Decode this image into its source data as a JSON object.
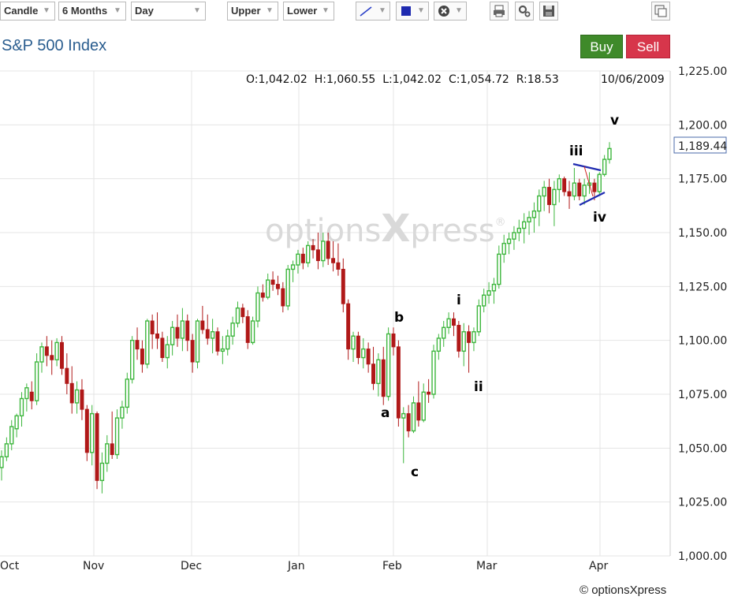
{
  "toolbar": {
    "chart_type": "Candle",
    "period": "6 Months",
    "interval": "Day",
    "upper": "Upper",
    "lower": "Lower",
    "line_color": "#2a40c8",
    "fill_color": "#1f2bb0",
    "icons": [
      "trendline-icon",
      "color-swatch-icon",
      "remove-icon",
      "print-icon",
      "settings-icon",
      "save-icon",
      "popout-icon"
    ]
  },
  "header": {
    "title": "S&P 500 Index",
    "buy_label": "Buy",
    "sell_label": "Sell",
    "ohlc_text": "O:1,042.02  H:1,060.55  L:1,042.02  C:1,054.72  R:18.53",
    "date": "10/06/2009"
  },
  "colors": {
    "up": "#3cb63c",
    "down": "#b01818",
    "grid": "#e4e4e4",
    "trend": "#1f2bb0",
    "trend_red": "#d02020"
  },
  "watermark": {
    "prefix": "options",
    "x": "X",
    "suffix": "press",
    "mark": "®"
  },
  "footer": {
    "copyright": "© optionsXpress"
  },
  "chart_data": {
    "type": "candlestick",
    "title": "S&P 500 Index",
    "ylim": [
      1000,
      1225
    ],
    "y_ticks": [
      "1,000.00",
      "1,025.00",
      "1,050.00",
      "1,075.00",
      "1,100.00",
      "1,125.00",
      "1,150.00",
      "1,175.00",
      "1,200.00",
      "1,225.00"
    ],
    "x_labels": [
      "Oct",
      "Nov",
      "Dec",
      "Jan",
      "Feb",
      "Mar",
      "Apr"
    ],
    "last_price": "1,189.44",
    "wave_labels": [
      "a",
      "b",
      "c",
      "i",
      "ii",
      "iii",
      "iv",
      "v"
    ],
    "candles": [
      [
        1041,
        1049,
        1035,
        1046
      ],
      [
        1046,
        1055,
        1044,
        1052
      ],
      [
        1052,
        1063,
        1049,
        1060
      ],
      [
        1059,
        1066,
        1055,
        1065
      ],
      [
        1065,
        1076,
        1060,
        1073
      ],
      [
        1073,
        1080,
        1067,
        1078
      ],
      [
        1076,
        1081,
        1068,
        1072
      ],
      [
        1072,
        1094,
        1070,
        1090
      ],
      [
        1090,
        1099,
        1085,
        1097
      ],
      [
        1097,
        1102,
        1088,
        1093
      ],
      [
        1093,
        1100,
        1084,
        1091
      ],
      [
        1091,
        1101,
        1088,
        1099
      ],
      [
        1099,
        1102,
        1084,
        1087
      ],
      [
        1087,
        1094,
        1075,
        1080
      ],
      [
        1080,
        1088,
        1066,
        1071
      ],
      [
        1071,
        1081,
        1066,
        1077
      ],
      [
        1077,
        1082,
        1063,
        1068
      ],
      [
        1068,
        1070,
        1044,
        1048
      ],
      [
        1048,
        1070,
        1042,
        1066
      ],
      [
        1066,
        1067,
        1031,
        1035
      ],
      [
        1035,
        1048,
        1029,
        1043
      ],
      [
        1043,
        1056,
        1039,
        1052
      ],
      [
        1052,
        1067,
        1045,
        1047
      ],
      [
        1047,
        1068,
        1045,
        1064
      ],
      [
        1064,
        1072,
        1059,
        1069
      ],
      [
        1069,
        1085,
        1066,
        1082
      ],
      [
        1082,
        1102,
        1080,
        1100
      ],
      [
        1100,
        1106,
        1091,
        1096
      ],
      [
        1096,
        1100,
        1085,
        1089
      ],
      [
        1089,
        1110,
        1087,
        1109
      ],
      [
        1109,
        1112,
        1096,
        1103
      ],
      [
        1103,
        1113,
        1096,
        1101
      ],
      [
        1101,
        1104,
        1090,
        1092
      ],
      [
        1092,
        1102,
        1087,
        1098
      ],
      [
        1098,
        1109,
        1093,
        1106
      ],
      [
        1106,
        1112,
        1097,
        1101
      ],
      [
        1101,
        1115,
        1095,
        1109
      ],
      [
        1109,
        1112,
        1095,
        1100
      ],
      [
        1100,
        1103,
        1085,
        1090
      ],
      [
        1090,
        1110,
        1087,
        1109
      ],
      [
        1109,
        1116,
        1103,
        1105
      ],
      [
        1105,
        1112,
        1098,
        1101
      ],
      [
        1101,
        1110,
        1094,
        1104
      ],
      [
        1104,
        1106,
        1093,
        1095
      ],
      [
        1095,
        1102,
        1089,
        1096
      ],
      [
        1096,
        1105,
        1093,
        1102
      ],
      [
        1102,
        1111,
        1098,
        1108
      ],
      [
        1108,
        1118,
        1106,
        1115
      ],
      [
        1115,
        1117,
        1108,
        1111
      ],
      [
        1111,
        1114,
        1096,
        1099
      ],
      [
        1099,
        1111,
        1098,
        1109
      ],
      [
        1109,
        1125,
        1106,
        1122
      ],
      [
        1122,
        1126,
        1118,
        1120
      ],
      [
        1120,
        1131,
        1119,
        1128
      ],
      [
        1128,
        1132,
        1123,
        1126
      ],
      [
        1126,
        1130,
        1121,
        1124
      ],
      [
        1124,
        1127,
        1113,
        1116
      ],
      [
        1116,
        1135,
        1114,
        1133
      ],
      [
        1133,
        1137,
        1127,
        1135
      ],
      [
        1135,
        1142,
        1131,
        1140
      ],
      [
        1140,
        1143,
        1133,
        1136
      ],
      [
        1136,
        1146,
        1134,
        1144
      ],
      [
        1144,
        1147,
        1138,
        1142
      ],
      [
        1142,
        1150,
        1133,
        1137
      ],
      [
        1137,
        1150,
        1134,
        1146
      ],
      [
        1146,
        1150,
        1135,
        1138
      ],
      [
        1138,
        1146,
        1132,
        1136
      ],
      [
        1136,
        1145,
        1130,
        1133
      ],
      [
        1133,
        1138,
        1113,
        1117
      ],
      [
        1117,
        1119,
        1091,
        1096
      ],
      [
        1096,
        1104,
        1090,
        1102
      ],
      [
        1102,
        1104,
        1089,
        1092
      ],
      [
        1092,
        1101,
        1087,
        1096
      ],
      [
        1096,
        1099,
        1085,
        1089
      ],
      [
        1089,
        1097,
        1077,
        1080
      ],
      [
        1080,
        1094,
        1074,
        1091
      ],
      [
        1091,
        1097,
        1070,
        1074
      ],
      [
        1074,
        1106,
        1072,
        1103
      ],
      [
        1103,
        1106,
        1093,
        1097
      ],
      [
        1097,
        1100,
        1060,
        1064
      ],
      [
        1064,
        1069,
        1043,
        1066
      ],
      [
        1066,
        1070,
        1055,
        1058
      ],
      [
        1058,
        1074,
        1057,
        1071
      ],
      [
        1071,
        1081,
        1060,
        1063
      ],
      [
        1063,
        1080,
        1062,
        1076
      ],
      [
        1076,
        1082,
        1071,
        1075
      ],
      [
        1075,
        1098,
        1073,
        1095
      ],
      [
        1095,
        1103,
        1091,
        1101
      ],
      [
        1101,
        1109,
        1097,
        1106
      ],
      [
        1106,
        1113,
        1103,
        1110
      ],
      [
        1110,
        1113,
        1102,
        1107
      ],
      [
        1107,
        1109,
        1092,
        1095
      ],
      [
        1095,
        1108,
        1088,
        1104
      ],
      [
        1104,
        1107,
        1085,
        1099
      ],
      [
        1099,
        1106,
        1095,
        1104
      ],
      [
        1104,
        1119,
        1102,
        1116
      ],
      [
        1116,
        1124,
        1113,
        1121
      ],
      [
        1121,
        1127,
        1117,
        1123
      ],
      [
        1123,
        1129,
        1117,
        1126
      ],
      [
        1126,
        1144,
        1124,
        1140
      ],
      [
        1140,
        1149,
        1136,
        1145
      ],
      [
        1145,
        1150,
        1140,
        1147
      ],
      [
        1147,
        1153,
        1142,
        1150
      ],
      [
        1150,
        1156,
        1146,
        1152
      ],
      [
        1152,
        1159,
        1145,
        1155
      ],
      [
        1155,
        1160,
        1149,
        1157
      ],
      [
        1157,
        1164,
        1150,
        1160
      ],
      [
        1160,
        1170,
        1153,
        1167
      ],
      [
        1167,
        1174,
        1160,
        1171
      ],
      [
        1171,
        1175,
        1159,
        1163
      ],
      [
        1163,
        1174,
        1153,
        1170
      ],
      [
        1170,
        1177,
        1164,
        1175
      ],
      [
        1175,
        1176,
        1167,
        1169
      ],
      [
        1169,
        1174,
        1161,
        1167
      ],
      [
        1167,
        1180,
        1165,
        1173
      ],
      [
        1173,
        1175,
        1165,
        1167
      ],
      [
        1167,
        1175,
        1163,
        1172
      ],
      [
        1172,
        1178,
        1168,
        1173
      ],
      [
        1173,
        1175,
        1165,
        1169
      ],
      [
        1169,
        1178,
        1167,
        1177
      ],
      [
        1177,
        1186,
        1176,
        1184
      ],
      [
        1184,
        1192,
        1182,
        1189
      ]
    ]
  }
}
